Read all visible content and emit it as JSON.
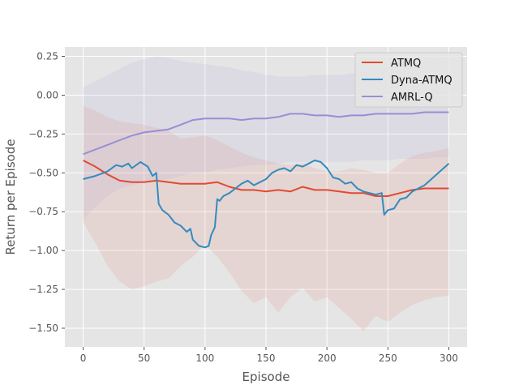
{
  "chart_data": {
    "type": "line",
    "xlabel": "Episode",
    "ylabel": "Return per Episode",
    "xlim": [
      -15,
      315
    ],
    "ylim": [
      -1.62,
      0.31
    ],
    "xticks": [
      0,
      50,
      100,
      150,
      200,
      250,
      300
    ],
    "yticks": [
      -1.5,
      -1.25,
      -1.0,
      -0.75,
      -0.5,
      -0.25,
      0.0,
      0.25
    ],
    "ytick_labels": [
      "−1.50",
      "−1.25",
      "−1.00",
      "−0.75",
      "−0.50",
      "−0.25",
      "0.00",
      "0.25"
    ],
    "grid": true,
    "legend_position": "top-right",
    "series": [
      {
        "name": "ATMQ",
        "color": "#E24A33",
        "x": [
          0,
          10,
          20,
          30,
          40,
          50,
          60,
          70,
          80,
          90,
          100,
          110,
          120,
          130,
          140,
          150,
          160,
          170,
          180,
          190,
          200,
          210,
          220,
          230,
          240,
          250,
          260,
          270,
          280,
          290,
          300
        ],
        "y": [
          -0.42,
          -0.46,
          -0.51,
          -0.55,
          -0.56,
          -0.56,
          -0.55,
          -0.56,
          -0.57,
          -0.57,
          -0.57,
          -0.56,
          -0.59,
          -0.61,
          -0.61,
          -0.62,
          -0.61,
          -0.62,
          -0.59,
          -0.61,
          -0.61,
          -0.62,
          -0.63,
          -0.63,
          -0.65,
          -0.65,
          -0.63,
          -0.61,
          -0.6,
          -0.6,
          -0.6
        ],
        "band_upper": [
          -0.07,
          -0.1,
          -0.14,
          -0.17,
          -0.18,
          -0.19,
          -0.21,
          -0.23,
          -0.28,
          -0.27,
          -0.26,
          -0.29,
          -0.33,
          -0.37,
          -0.4,
          -0.42,
          -0.44,
          -0.45,
          -0.44,
          -0.47,
          -0.49,
          -0.49,
          -0.47,
          -0.48,
          -0.5,
          -0.5,
          -0.44,
          -0.39,
          -0.37,
          -0.36,
          -0.34
        ],
        "band_lower": [
          -0.82,
          -0.95,
          -1.1,
          -1.2,
          -1.25,
          -1.23,
          -1.2,
          -1.18,
          -1.1,
          -1.04,
          -0.96,
          -1.04,
          -1.14,
          -1.26,
          -1.34,
          -1.3,
          -1.4,
          -1.3,
          -1.24,
          -1.33,
          -1.3,
          -1.37,
          -1.44,
          -1.52,
          -1.42,
          -1.46,
          -1.4,
          -1.35,
          -1.32,
          -1.3,
          -1.29
        ]
      },
      {
        "name": "Dyna-ATMQ",
        "color": "#348ABD",
        "x": [
          0,
          10,
          20,
          27,
          32,
          37,
          40,
          47,
          53,
          57,
          60,
          62,
          65,
          70,
          75,
          80,
          85,
          88,
          90,
          95,
          100,
          103,
          105,
          108,
          110,
          112,
          115,
          120,
          125,
          130,
          135,
          140,
          145,
          150,
          155,
          160,
          165,
          170,
          175,
          180,
          185,
          190,
          195,
          200,
          205,
          210,
          215,
          220,
          225,
          230,
          235,
          240,
          245,
          247,
          250,
          255,
          260,
          265,
          270,
          280,
          290,
          300
        ],
        "y": [
          -0.54,
          -0.52,
          -0.49,
          -0.45,
          -0.46,
          -0.44,
          -0.47,
          -0.43,
          -0.46,
          -0.52,
          -0.5,
          -0.7,
          -0.74,
          -0.77,
          -0.82,
          -0.84,
          -0.88,
          -0.86,
          -0.93,
          -0.97,
          -0.98,
          -0.97,
          -0.9,
          -0.85,
          -0.67,
          -0.68,
          -0.65,
          -0.63,
          -0.6,
          -0.57,
          -0.55,
          -0.58,
          -0.56,
          -0.54,
          -0.5,
          -0.48,
          -0.47,
          -0.49,
          -0.45,
          -0.46,
          -0.44,
          -0.42,
          -0.43,
          -0.47,
          -0.53,
          -0.54,
          -0.57,
          -0.56,
          -0.6,
          -0.62,
          -0.63,
          -0.64,
          -0.63,
          -0.77,
          -0.74,
          -0.73,
          -0.67,
          -0.66,
          -0.62,
          -0.58,
          -0.51,
          -0.44
        ]
      },
      {
        "name": "AMRL-Q",
        "color": "#988ED5",
        "x": [
          0,
          10,
          20,
          30,
          40,
          50,
          60,
          70,
          80,
          90,
          100,
          110,
          120,
          130,
          140,
          150,
          160,
          170,
          180,
          190,
          200,
          210,
          220,
          230,
          240,
          250,
          260,
          270,
          280,
          290,
          300
        ],
        "y": [
          -0.38,
          -0.35,
          -0.32,
          -0.29,
          -0.26,
          -0.24,
          -0.23,
          -0.22,
          -0.19,
          -0.16,
          -0.15,
          -0.15,
          -0.15,
          -0.16,
          -0.15,
          -0.15,
          -0.14,
          -0.12,
          -0.12,
          -0.13,
          -0.13,
          -0.14,
          -0.13,
          -0.13,
          -0.12,
          -0.12,
          -0.12,
          -0.12,
          -0.11,
          -0.11,
          -0.11
        ],
        "band_upper": [
          0.05,
          0.09,
          0.13,
          0.17,
          0.21,
          0.23,
          0.25,
          0.24,
          0.22,
          0.21,
          0.2,
          0.19,
          0.18,
          0.16,
          0.15,
          0.13,
          0.12,
          0.12,
          0.12,
          0.13,
          0.13,
          0.13,
          0.14,
          0.15,
          0.17,
          0.18,
          0.19,
          0.2,
          0.22,
          0.23,
          0.24
        ],
        "band_lower": [
          -0.8,
          -0.72,
          -0.65,
          -0.6,
          -0.58,
          -0.56,
          -0.55,
          -0.54,
          -0.52,
          -0.5,
          -0.5,
          -0.48,
          -0.47,
          -0.46,
          -0.45,
          -0.45,
          -0.44,
          -0.43,
          -0.43,
          -0.43,
          -0.43,
          -0.43,
          -0.43,
          -0.42,
          -0.42,
          -0.42,
          -0.41,
          -0.41,
          -0.41,
          -0.4,
          -0.4
        ]
      }
    ]
  }
}
